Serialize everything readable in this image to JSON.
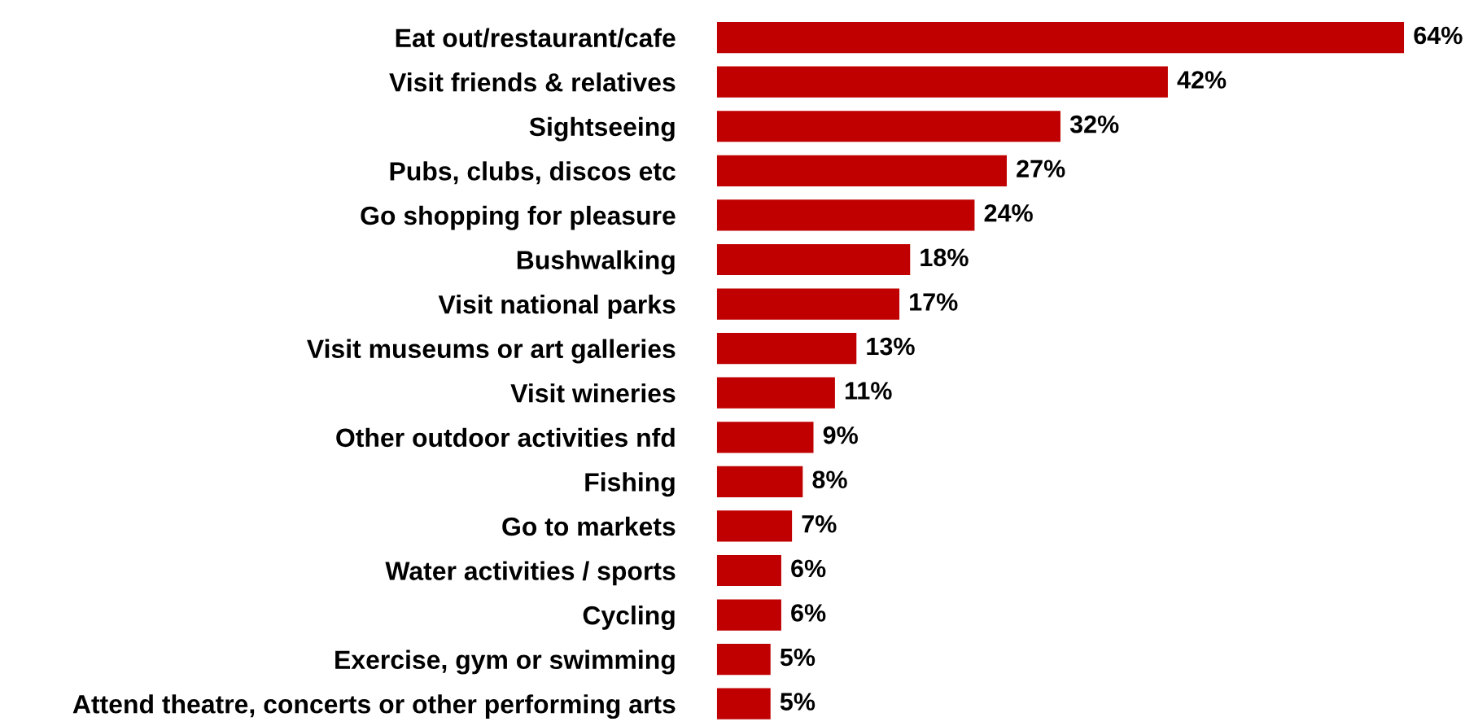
{
  "chart_data": {
    "type": "bar",
    "orientation": "horizontal",
    "categories": [
      "Eat out/restaurant/cafe",
      "Visit friends & relatives",
      "Sightseeing",
      "Pubs, clubs, discos etc",
      "Go shopping for pleasure",
      "Bushwalking",
      "Visit national parks",
      "Visit museums or art galleries",
      "Visit wineries",
      "Other outdoor activities nfd",
      "Fishing",
      "Go to markets",
      "Water activities / sports",
      "Cycling",
      "Exercise, gym or swimming",
      "Attend theatre, concerts or other performing arts"
    ],
    "values": [
      64,
      42,
      32,
      27,
      24,
      18,
      17,
      13,
      11,
      9,
      8,
      7,
      6,
      6,
      5,
      5
    ],
    "value_labels": [
      "64%",
      "42%",
      "32%",
      "27%",
      "24%",
      "18%",
      "17%",
      "13%",
      "11%",
      "9%",
      "8%",
      "7%",
      "6%",
      "6%",
      "5%",
      "5%"
    ],
    "color": "#c00000",
    "grid": false,
    "legend": false
  }
}
